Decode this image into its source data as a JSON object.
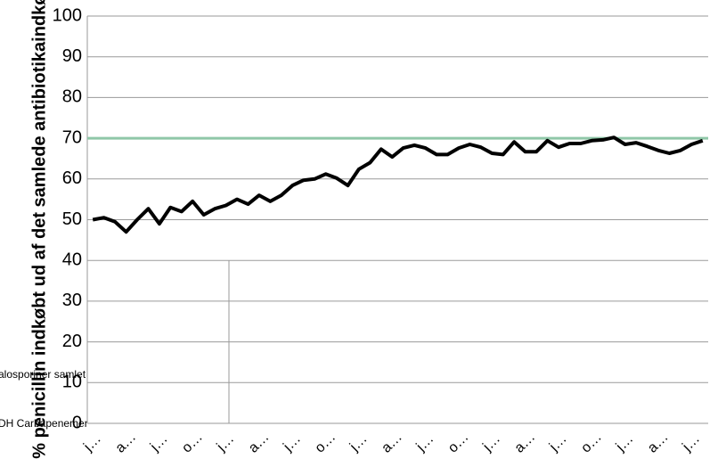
{
  "chart_data": {
    "type": "line",
    "y_label": "% penicillin indkøbt ud af det samlede antibiotikaindkøb",
    "annotations": [
      "alosporiner samlet",
      "DH Carbapenemer"
    ],
    "categories": [
      "j…",
      null,
      null,
      "a…",
      null,
      null,
      "j…",
      null,
      null,
      "o…",
      null,
      null,
      "j…",
      null,
      null,
      "a…",
      null,
      null,
      "j…",
      null,
      null,
      "o…",
      null,
      null,
      "j…",
      null,
      null,
      "a…",
      null,
      null,
      "j…",
      null,
      null,
      "o…",
      null,
      null,
      "j…",
      null,
      null,
      "a…",
      null,
      null,
      "j…",
      null,
      null,
      "o…",
      null,
      null,
      "j…",
      null,
      null,
      "a…",
      null,
      null,
      "j…",
      null
    ],
    "series": [
      {
        "name": null,
        "color": "#000000",
        "values": [
          50,
          50.5,
          49.5,
          47,
          50,
          52.7,
          49,
          53,
          52,
          54.5,
          51.2,
          52.7,
          53.5,
          55,
          53.8,
          56,
          54.5,
          56,
          58.4,
          59.7,
          60,
          61.2,
          60.2,
          58.4,
          62.4,
          64,
          67.3,
          65.4,
          67.6,
          68.3,
          67.6,
          66,
          66,
          67.6,
          68.5,
          67.8,
          66.3,
          66,
          69.1,
          66.7,
          66.7,
          69.4,
          67.8,
          68.7,
          68.7,
          69.4,
          69.6,
          70.2,
          68.5,
          68.9,
          68,
          67,
          66.3,
          67,
          68.5,
          69.4
        ]
      }
    ],
    "reference_line": {
      "value": 70,
      "color": "#8fc7a8"
    },
    "ylim": [
      0,
      100
    ],
    "yticks": [
      0,
      10,
      20,
      30,
      40,
      50,
      60,
      70,
      80,
      90,
      100
    ],
    "grid": true
  }
}
